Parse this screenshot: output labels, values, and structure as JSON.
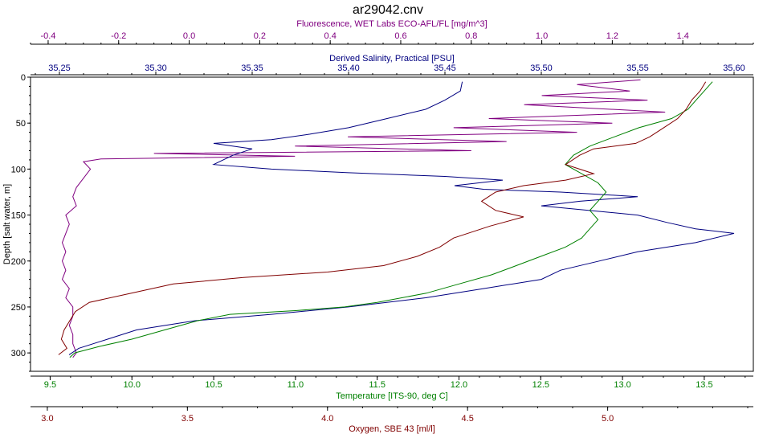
{
  "chart_data": {
    "type": "line",
    "title": "ar29042.cnv",
    "colors": {
      "fluorescence": "#800080",
      "salinity": "#000080",
      "temperature": "#008000",
      "oxygen": "#800000",
      "frame": "#000000"
    },
    "y_axis": {
      "label": "Depth [salt water, m]",
      "range": [
        0,
        320
      ],
      "inverted": true,
      "ticks": [
        0,
        50,
        100,
        150,
        200,
        250,
        300
      ]
    },
    "x_axes": [
      {
        "id": "fluorescence",
        "label": "Fluorescence, WET Labs ECO-AFL/FL [mg/m^3]",
        "position": "top-1",
        "range": [
          -0.45,
          1.6
        ],
        "ticks": [
          -0.4,
          -0.2,
          0.0,
          0.2,
          0.4,
          0.6,
          0.8,
          1.0,
          1.2,
          1.4
        ],
        "tick_labels": [
          "-0.4",
          "-0.2",
          "0.0",
          "0.2",
          "0.4",
          "0.6",
          "0.8",
          "1.0",
          "1.2",
          "1.4"
        ]
      },
      {
        "id": "salinity",
        "label": "Derived Salinity, Practical [PSU]",
        "position": "top-2",
        "range": [
          35.235,
          35.61
        ],
        "ticks": [
          35.25,
          35.3,
          35.35,
          35.4,
          35.45,
          35.5,
          35.55,
          35.6
        ],
        "tick_labels": [
          "35.25",
          "35.30",
          "35.35",
          "35.40",
          "35.45",
          "35.50",
          "35.55",
          "35.60"
        ]
      },
      {
        "id": "temperature",
        "label": "Temperature [ITS-90, deg C]",
        "position": "bottom-1",
        "range": [
          9.38,
          13.8
        ],
        "ticks": [
          9.5,
          10.0,
          10.5,
          11.0,
          11.5,
          12.0,
          12.5,
          13.0,
          13.5
        ],
        "tick_labels": [
          "9.5",
          "10.0",
          "10.5",
          "11.0",
          "11.5",
          "12.0",
          "12.5",
          "13.0",
          "13.5"
        ]
      },
      {
        "id": "oxygen",
        "label": "Oxygen, SBE 43 [ml/l]",
        "position": "bottom-2",
        "range": [
          2.94,
          5.52
        ],
        "ticks": [
          3.0,
          3.5,
          4.0,
          4.5,
          5.0
        ],
        "tick_labels": [
          "3.0",
          "3.5",
          "4.0",
          "4.5",
          "5.0"
        ]
      }
    ],
    "series": [
      {
        "axis": "fluorescence",
        "points": [
          [
            1.28,
            3
          ],
          [
            1.1,
            8
          ],
          [
            1.25,
            15
          ],
          [
            1.0,
            20
          ],
          [
            1.3,
            25
          ],
          [
            0.95,
            30
          ],
          [
            1.35,
            38
          ],
          [
            0.85,
            45
          ],
          [
            1.2,
            50
          ],
          [
            0.75,
            55
          ],
          [
            1.1,
            60
          ],
          [
            0.45,
            65
          ],
          [
            0.9,
            70
          ],
          [
            0.3,
            75
          ],
          [
            0.8,
            80
          ],
          [
            -0.1,
            83
          ],
          [
            0.3,
            86
          ],
          [
            -0.25,
            89
          ],
          [
            -0.3,
            92
          ],
          [
            -0.28,
            100
          ],
          [
            -0.3,
            110
          ],
          [
            -0.32,
            120
          ],
          [
            -0.33,
            130
          ],
          [
            -0.32,
            140
          ],
          [
            -0.35,
            150
          ],
          [
            -0.34,
            160
          ],
          [
            -0.35,
            170
          ],
          [
            -0.36,
            180
          ],
          [
            -0.35,
            190
          ],
          [
            -0.36,
            200
          ],
          [
            -0.35,
            210
          ],
          [
            -0.36,
            220
          ],
          [
            -0.34,
            230
          ],
          [
            -0.35,
            240
          ],
          [
            -0.33,
            250
          ],
          [
            -0.33,
            260
          ],
          [
            -0.34,
            270
          ],
          [
            -0.33,
            280
          ],
          [
            -0.33,
            290
          ],
          [
            -0.32,
            300
          ],
          [
            -0.33,
            305
          ]
        ]
      },
      {
        "axis": "salinity",
        "points": [
          [
            35.459,
            5
          ],
          [
            35.458,
            15
          ],
          [
            35.45,
            25
          ],
          [
            35.44,
            35
          ],
          [
            35.42,
            45
          ],
          [
            35.4,
            55
          ],
          [
            35.38,
            62
          ],
          [
            35.36,
            68
          ],
          [
            35.33,
            72
          ],
          [
            35.35,
            78
          ],
          [
            35.34,
            85
          ],
          [
            35.33,
            95
          ],
          [
            35.36,
            100
          ],
          [
            35.4,
            104
          ],
          [
            35.45,
            108
          ],
          [
            35.48,
            112
          ],
          [
            35.455,
            118
          ],
          [
            35.47,
            122
          ],
          [
            35.51,
            125
          ],
          [
            35.55,
            130
          ],
          [
            35.52,
            135
          ],
          [
            35.5,
            140
          ],
          [
            35.55,
            150
          ],
          [
            35.565,
            158
          ],
          [
            35.58,
            165
          ],
          [
            35.6,
            170
          ],
          [
            35.58,
            180
          ],
          [
            35.55,
            190
          ],
          [
            35.53,
            200
          ],
          [
            35.51,
            210
          ],
          [
            35.5,
            220
          ],
          [
            35.47,
            230
          ],
          [
            35.44,
            240
          ],
          [
            35.4,
            250
          ],
          [
            35.36,
            258
          ],
          [
            35.32,
            265
          ],
          [
            35.29,
            275
          ],
          [
            35.275,
            285
          ],
          [
            35.26,
            295
          ],
          [
            35.255,
            302
          ]
        ]
      },
      {
        "axis": "temperature",
        "points": [
          [
            13.55,
            5
          ],
          [
            13.5,
            15
          ],
          [
            13.45,
            25
          ],
          [
            13.4,
            35
          ],
          [
            13.3,
            45
          ],
          [
            13.1,
            55
          ],
          [
            12.95,
            65
          ],
          [
            12.8,
            75
          ],
          [
            12.7,
            85
          ],
          [
            12.65,
            95
          ],
          [
            12.75,
            105
          ],
          [
            12.85,
            115
          ],
          [
            12.9,
            125
          ],
          [
            12.85,
            135
          ],
          [
            12.8,
            145
          ],
          [
            12.85,
            155
          ],
          [
            12.8,
            165
          ],
          [
            12.75,
            175
          ],
          [
            12.65,
            185
          ],
          [
            12.5,
            195
          ],
          [
            12.35,
            205
          ],
          [
            12.2,
            215
          ],
          [
            12.0,
            225
          ],
          [
            11.8,
            235
          ],
          [
            11.5,
            245
          ],
          [
            11.3,
            250
          ],
          [
            11.0,
            254
          ],
          [
            10.6,
            258
          ],
          [
            10.4,
            265
          ],
          [
            10.2,
            275
          ],
          [
            10.0,
            285
          ],
          [
            9.8,
            293
          ],
          [
            9.65,
            300
          ],
          [
            9.62,
            305
          ]
        ]
      },
      {
        "axis": "oxygen",
        "points": [
          [
            5.35,
            5
          ],
          [
            5.33,
            15
          ],
          [
            5.3,
            25
          ],
          [
            5.28,
            35
          ],
          [
            5.25,
            45
          ],
          [
            5.2,
            55
          ],
          [
            5.15,
            65
          ],
          [
            5.1,
            72
          ],
          [
            4.95,
            78
          ],
          [
            4.9,
            85
          ],
          [
            4.85,
            95
          ],
          [
            4.95,
            105
          ],
          [
            4.85,
            112
          ],
          [
            4.7,
            118
          ],
          [
            4.6,
            125
          ],
          [
            4.55,
            135
          ],
          [
            4.6,
            145
          ],
          [
            4.7,
            152
          ],
          [
            4.58,
            162
          ],
          [
            4.45,
            175
          ],
          [
            4.4,
            185
          ],
          [
            4.32,
            195
          ],
          [
            4.2,
            205
          ],
          [
            4.0,
            212
          ],
          [
            3.7,
            218
          ],
          [
            3.45,
            225
          ],
          [
            3.3,
            235
          ],
          [
            3.15,
            245
          ],
          [
            3.1,
            255
          ],
          [
            3.08,
            265
          ],
          [
            3.06,
            275
          ],
          [
            3.05,
            285
          ],
          [
            3.07,
            295
          ],
          [
            3.04,
            302
          ]
        ]
      }
    ]
  }
}
